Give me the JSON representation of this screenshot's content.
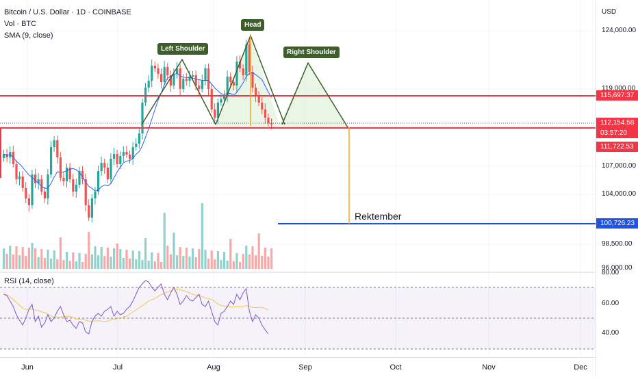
{
  "legend": {
    "symbol": "Bitcoin / U.S. Dollar · 1D · COINBASE",
    "vol": "Vol · BTC",
    "sma": "SMA (9, close)"
  },
  "rsi_title": "RSI (14, close)",
  "currency": "USD",
  "price_axis": [
    "124,000.00",
    "119,000.00",
    "107,000.00",
    "104,000.00",
    "98,500.00",
    "96,000.00"
  ],
  "rsi_axis": [
    "80.00",
    "60.00",
    "40.00"
  ],
  "badges": {
    "level_high": "115,697.37",
    "last_price": "112,154.58",
    "countdown": "03:57:20",
    "neckline": "111,722.53",
    "target": "100,726.23"
  },
  "time_axis": [
    "Jun",
    "Jul",
    "Aug",
    "Sep",
    "Oct",
    "Nov",
    "Dec"
  ],
  "annotations": {
    "head": "Head",
    "left_shoulder": "Left Shoulder",
    "right_shoulder": "Right Shoulder",
    "target_text": "Rektember"
  },
  "colors": {
    "up": "#26a69a",
    "down": "#ef5350",
    "level": "#f23645",
    "target": "#1e53e5",
    "pattern": "#3e5e2b",
    "sma": "#2962ff",
    "rsi": "#7e57c2",
    "rsi_ma": "#f5c34d"
  }
}
